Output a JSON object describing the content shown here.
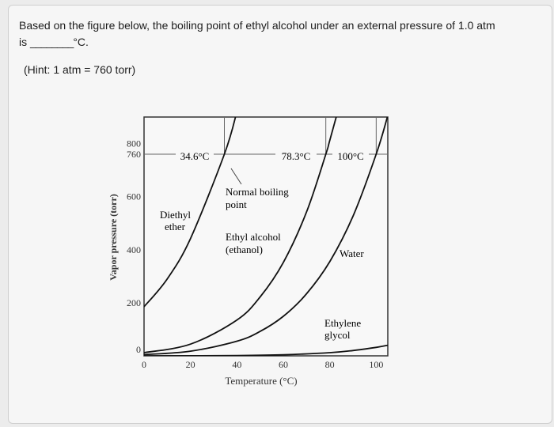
{
  "question": {
    "line1": "Based on the figure below, the boiling point of ethyl alcohol under an external pressure of 1.0 atm",
    "line2_prefix": "is",
    "blank": "________",
    "line2_suffix": "°C.",
    "hint": "(Hint: 1 atm = 760 torr)"
  },
  "chart_data": {
    "type": "line",
    "xlabel": "Temperature (°C)",
    "ylabel": "Vapor pressure (torr)",
    "xlim": [
      0,
      105
    ],
    "ylim": [
      0,
      900
    ],
    "x_ticks": [
      0,
      20,
      40,
      60,
      80,
      100
    ],
    "y_ticks": [
      0,
      200,
      400,
      600,
      760,
      800
    ],
    "reference_line_y": 760,
    "series": [
      {
        "name": "Diethyl ether",
        "points": [
          [
            0,
            185
          ],
          [
            10,
            290
          ],
          [
            20,
            442
          ],
          [
            34.6,
            760
          ],
          [
            40,
            920
          ]
        ]
      },
      {
        "name": "Ethyl alcohol (ethanol)",
        "points": [
          [
            0,
            12
          ],
          [
            20,
            44
          ],
          [
            40,
            135
          ],
          [
            50,
            222
          ],
          [
            60,
            352
          ],
          [
            70,
            542
          ],
          [
            78.3,
            760
          ],
          [
            80,
            812
          ],
          [
            85,
            970
          ]
        ]
      },
      {
        "name": "Water",
        "points": [
          [
            0,
            4.6
          ],
          [
            20,
            17.5
          ],
          [
            40,
            55
          ],
          [
            50,
            92
          ],
          [
            60,
            149
          ],
          [
            70,
            234
          ],
          [
            80,
            355
          ],
          [
            90,
            526
          ],
          [
            100,
            760
          ],
          [
            105,
            906
          ]
        ]
      },
      {
        "name": "Ethylene glycol",
        "points": [
          [
            0,
            0
          ],
          [
            40,
            1
          ],
          [
            60,
            4
          ],
          [
            80,
            12
          ],
          [
            90,
            20
          ],
          [
            100,
            32
          ],
          [
            105,
            40
          ]
        ]
      }
    ],
    "annotations": {
      "ether_bp": "34.6°C",
      "ethanol_bp": "78.3°C",
      "water_bp": "100°C",
      "normal_bp_label_1": "Normal boiling",
      "normal_bp_label_2": "point",
      "ether_label_1": "Diethyl",
      "ether_label_2": "ether",
      "ethanol_label_1": "Ethyl alcohol",
      "ethanol_label_2": "(ethanol)",
      "water_label": "Water",
      "glycol_label_1": "Ethylene",
      "glycol_label_2": "glycol"
    }
  }
}
